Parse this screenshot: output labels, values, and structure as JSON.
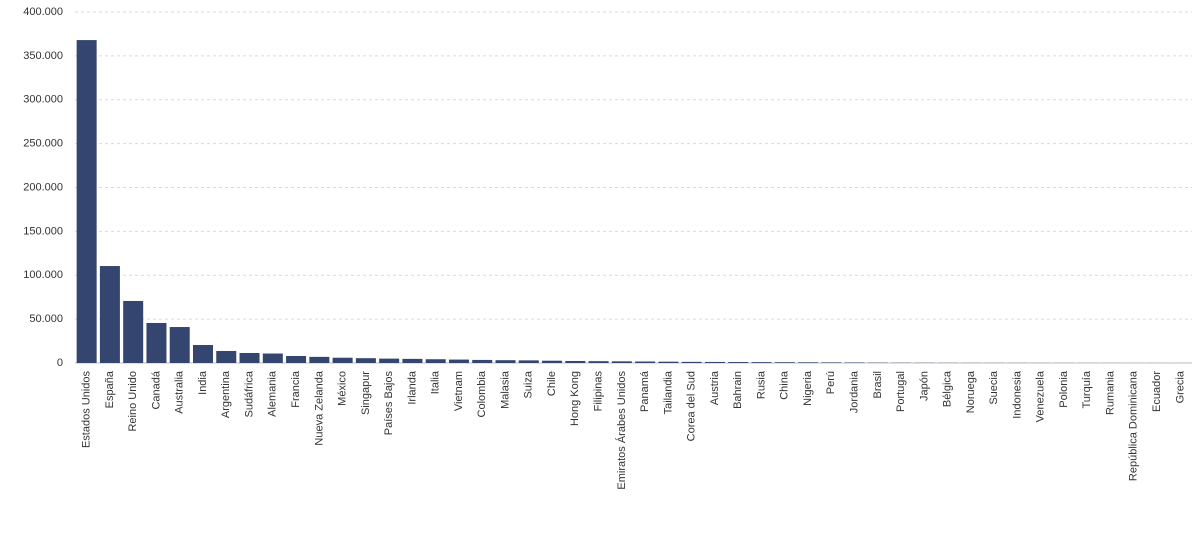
{
  "chart_data": {
    "type": "bar",
    "categories": [
      "Estados Unidos",
      "España",
      "Reino Unido",
      "Canadá",
      "Australia",
      "India",
      "Argentina",
      "Sudáfrica",
      "Alemania",
      "Francia",
      "Nueva Zelanda",
      "México",
      "Singapur",
      "Países Bajos",
      "Irlanda",
      "Italia",
      "Vietnam",
      "Colombia",
      "Malasia",
      "Suiza",
      "Chile",
      "Hong Kong",
      "Filipinas",
      "Emiratos Árabes Unidos",
      "Panamá",
      "Tailandia",
      "Corea del Sud",
      "Austria",
      "Bahrain",
      "Rusia",
      "China",
      "Nigeria",
      "Perú",
      "Jordania",
      "Brasil",
      "Portugal",
      "Japón",
      "Bélgica",
      "Noruega",
      "Suecia",
      "Indonesia",
      "Venezuela",
      "Polonia",
      "Turquía",
      "Rumania",
      "República Dominicana",
      "Ecuador",
      "Grecia"
    ],
    "values": [
      368000,
      110500,
      70700,
      45600,
      41000,
      20500,
      13700,
      11400,
      10800,
      8000,
      7000,
      6000,
      5500,
      5000,
      4700,
      4300,
      3900,
      3500,
      3200,
      3000,
      2600,
      2300,
      2100,
      1900,
      1700,
      1500,
      1300,
      1200,
      1100,
      1000,
      900,
      800,
      700,
      600,
      400,
      300,
      250,
      200,
      180,
      160,
      140,
      120,
      100,
      90,
      80,
      70,
      60,
      50
    ],
    "color": "#34466f",
    "ylim": [
      0,
      400000
    ],
    "yticks": [
      0,
      {
        "value": 50000,
        "label": "50.000"
      },
      {
        "value": 100000,
        "label": "100.000"
      },
      {
        "value": 150000,
        "label": "150.000"
      },
      {
        "value": 200000,
        "label": "200.000"
      },
      {
        "value": 250000,
        "label": "250.000"
      },
      {
        "value": 300000,
        "label": "300.000"
      },
      {
        "value": 350000,
        "label": "350.000"
      },
      {
        "value": 400000,
        "label": "400.000"
      }
    ],
    "grid": true
  }
}
